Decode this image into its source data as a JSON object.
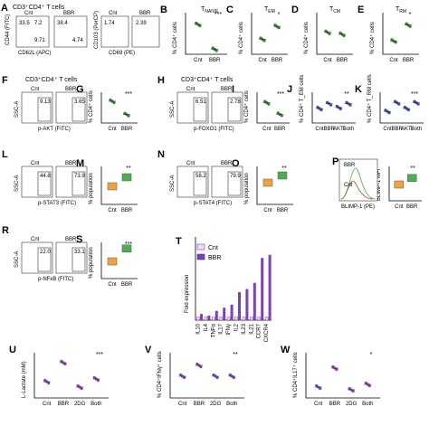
{
  "figure": {
    "A": {
      "letter": "A",
      "header": "CD3⁺CD4⁺ T cells",
      "flow_labels": {
        "cnt": "Cnt",
        "bbr": "BBR",
        "cd44_axis": "CD44 (FITC)",
        "cd62l_axis": "CD62L (APC)",
        "cd103_axis": "CD103 (PerCP)",
        "cd69_axis": "CD69 (PE)",
        "naive": "T_N",
        "em": "T_EM",
        "cm": "T_CM",
        "rm": "T_RM",
        "cnt_em_val": "33.5",
        "cnt_cm_val": "7.2",
        "cnt_n_val": "9.71",
        "bbr_em_val": "38.4",
        "bbr_cm_val": "4.74",
        "cnt_rm_val": "1.74",
        "bbr_rm_val": "2.39"
      }
    },
    "B": {
      "letter": "B",
      "title": "T",
      "sub": "NAIVE",
      "ylabel": "% CD4⁺ cells",
      "sig": "***"
    },
    "C": {
      "letter": "C",
      "title": "T",
      "sub": "EM",
      "ylabel": "% CD4⁺ cells",
      "sig": "*"
    },
    "D": {
      "letter": "D",
      "title": "T",
      "sub": "CM",
      "ylabel": "% CD4⁺ cells",
      "sig": ""
    },
    "E": {
      "letter": "E",
      "title": "T",
      "sub": "RM",
      "ylabel": "% CD4⁺ cells",
      "sig": "*"
    },
    "F": {
      "letter": "F",
      "header": "CD3⁺CD4⁺ T cells",
      "cnt": "Cnt",
      "bbr": "BBR",
      "y": "SSC-A",
      "x": "p-AKT (FITC)",
      "v1": "9.13",
      "v2": "3.65"
    },
    "G": {
      "letter": "G",
      "ylabel": "% CD4⁺ cells",
      "sig": "***"
    },
    "H": {
      "letter": "H",
      "header": "CD3⁺CD4⁺ T cells",
      "cnt": "Cnt",
      "bbr": "BBR",
      "y": "SSC-A",
      "x": "p-FOXO1 (FITC)",
      "v1": "6.51",
      "v2": "2.78"
    },
    "I": {
      "letter": "I",
      "ylabel": "% CD4⁺ cells",
      "sig": "***"
    },
    "J": {
      "letter": "J",
      "ylabel": "% CD4⁺ T_EM cells",
      "sig1": "*",
      "sig2": "**"
    },
    "K": {
      "letter": "K",
      "ylabel": "% CD4⁺ T_RM cells",
      "sig1": "**",
      "sig2": "***"
    },
    "L": {
      "letter": "L",
      "cnt": "Cnt",
      "bbr": "BBR",
      "y": "SSC-A",
      "x": "p-STAT3 (FITC)",
      "v1": "44.8",
      "v2": "73.9"
    },
    "M": {
      "letter": "M",
      "ylabel": "% population",
      "sig": "**"
    },
    "N": {
      "letter": "N",
      "cnt": "Cnt",
      "bbr": "BBR",
      "y": "SSC-A",
      "x": "p-STAT4 (FITC)",
      "v1": "58.2",
      "v2": "79.9"
    },
    "O": {
      "letter": "O",
      "ylabel": "% population",
      "sig": "**"
    },
    "P": {
      "letter": "P",
      "x": "BLIMP-1 (PE)",
      "l1": "BBR",
      "l2": "Cnt"
    },
    "Q": {
      "letter": "Q",
      "ylabel": "BLIMP-1 MFI",
      "sig": "**"
    },
    "R": {
      "letter": "R",
      "cnt": "Cnt",
      "bbr": "BBR",
      "y": "SSC-A",
      "x": "p-NFκB (FITC)",
      "v1": "22.0",
      "v2": "33.1"
    },
    "S": {
      "letter": "S",
      "ylabel": "% population",
      "sig": "***"
    },
    "T": {
      "letter": "T",
      "ylabel": "Fold expression",
      "legend_cnt": "Cnt",
      "legend_bbr": "BBR"
    },
    "U": {
      "letter": "U",
      "ylabel": "L-Lactate (mM)",
      "sig1": "***",
      "sig2": "***"
    },
    "V": {
      "letter": "V",
      "ylabel": "% CD4⁺IFNγ⁺ cells",
      "sig": "**"
    },
    "W": {
      "letter": "W",
      "ylabel": "% CD4⁺IL17⁺ cells",
      "sig1": "*",
      "sig2": "*"
    },
    "groups2": [
      "Cnt",
      "BBR"
    ],
    "groups4": [
      "Cnt",
      "BBR",
      "AKTi",
      "Both"
    ],
    "groups4b": [
      "Cnt",
      "BBR",
      "2DG",
      "Both"
    ]
  },
  "chart_data": [
    {
      "type": "scatter",
      "panel": "B",
      "categories": [
        "Cnt",
        "BBR"
      ],
      "values": [
        30,
        5
      ],
      "ylim": [
        0,
        40
      ]
    },
    {
      "type": "scatter",
      "panel": "C",
      "categories": [
        "Cnt",
        "BBR"
      ],
      "values": [
        15,
        28
      ],
      "ylim": [
        0,
        40
      ]
    },
    {
      "type": "scatter",
      "panel": "D",
      "categories": [
        "Cnt",
        "BBR"
      ],
      "values": [
        22,
        20
      ],
      "ylim": [
        0,
        40
      ]
    },
    {
      "type": "scatter",
      "panel": "E",
      "categories": [
        "Cnt",
        "BBR"
      ],
      "values": [
        10,
        22
      ],
      "ylim": [
        0,
        30
      ]
    },
    {
      "type": "scatter",
      "panel": "G",
      "categories": [
        "Cnt",
        "BBR"
      ],
      "values": [
        9,
        3.5
      ],
      "ylim": [
        0,
        12
      ]
    },
    {
      "type": "scatter",
      "panel": "I",
      "categories": [
        "Cnt",
        "BBR"
      ],
      "values": [
        7,
        3
      ],
      "ylim": [
        0,
        10
      ]
    },
    {
      "type": "scatter",
      "panel": "J",
      "categories": [
        "Cnt",
        "BBR",
        "AKTi",
        "Both"
      ],
      "values": [
        30,
        40,
        32,
        40
      ],
      "ylim": [
        0,
        60
      ]
    },
    {
      "type": "scatter",
      "panel": "K",
      "categories": [
        "Cnt",
        "BBR",
        "AKTi",
        "Both"
      ],
      "values": [
        20,
        35,
        25,
        35
      ],
      "ylim": [
        0,
        50
      ]
    },
    {
      "type": "bar",
      "panel": "M",
      "categories": [
        "Cnt",
        "BBR"
      ],
      "values": [
        50,
        75
      ],
      "ylim": [
        0,
        100
      ]
    },
    {
      "type": "bar",
      "panel": "O",
      "categories": [
        "Cnt",
        "BBR"
      ],
      "values": [
        60,
        80
      ],
      "ylim": [
        0,
        100
      ]
    },
    {
      "type": "bar",
      "panel": "Q",
      "categories": [
        "Cnt",
        "BBR"
      ],
      "values": [
        5,
        7
      ],
      "ylim": [
        0,
        10
      ]
    },
    {
      "type": "bar",
      "panel": "S",
      "categories": [
        "Cnt",
        "BBR"
      ],
      "values": [
        20,
        35
      ],
      "ylim": [
        0,
        40
      ]
    },
    {
      "type": "bar",
      "panel": "T",
      "categories": [
        "IL10",
        "IL4",
        "TNFα",
        "IL17",
        "IFNγ",
        "IL2",
        "IL23",
        "IL21",
        "CCR7",
        "CXCR4"
      ],
      "series": [
        {
          "name": "Cnt",
          "values": [
            1,
            1,
            1,
            1,
            1,
            1,
            1,
            1,
            1,
            1
          ]
        },
        {
          "name": "BBR",
          "values": [
            2,
            1.5,
            3,
            4,
            5,
            9,
            10,
            12,
            20,
            21
          ]
        }
      ],
      "ylim": [
        0,
        25
      ]
    },
    {
      "type": "scatter",
      "panel": "U",
      "categories": [
        "Cnt",
        "BBR",
        "2DG",
        "Both"
      ],
      "values": [
        3,
        6.5,
        2,
        3.5
      ],
      "ylim": [
        0,
        8
      ]
    },
    {
      "type": "scatter",
      "panel": "V",
      "categories": [
        "Cnt",
        "BBR",
        "2DG",
        "Both"
      ],
      "values": [
        3,
        4.5,
        3,
        3
      ],
      "ylim": [
        0,
        6
      ]
    },
    {
      "type": "scatter",
      "panel": "W",
      "categories": [
        "Cnt",
        "BBR",
        "2DG",
        "Both"
      ],
      "values": [
        2,
        5.5,
        1.5,
        2.5
      ],
      "ylim": [
        0,
        8
      ]
    }
  ]
}
